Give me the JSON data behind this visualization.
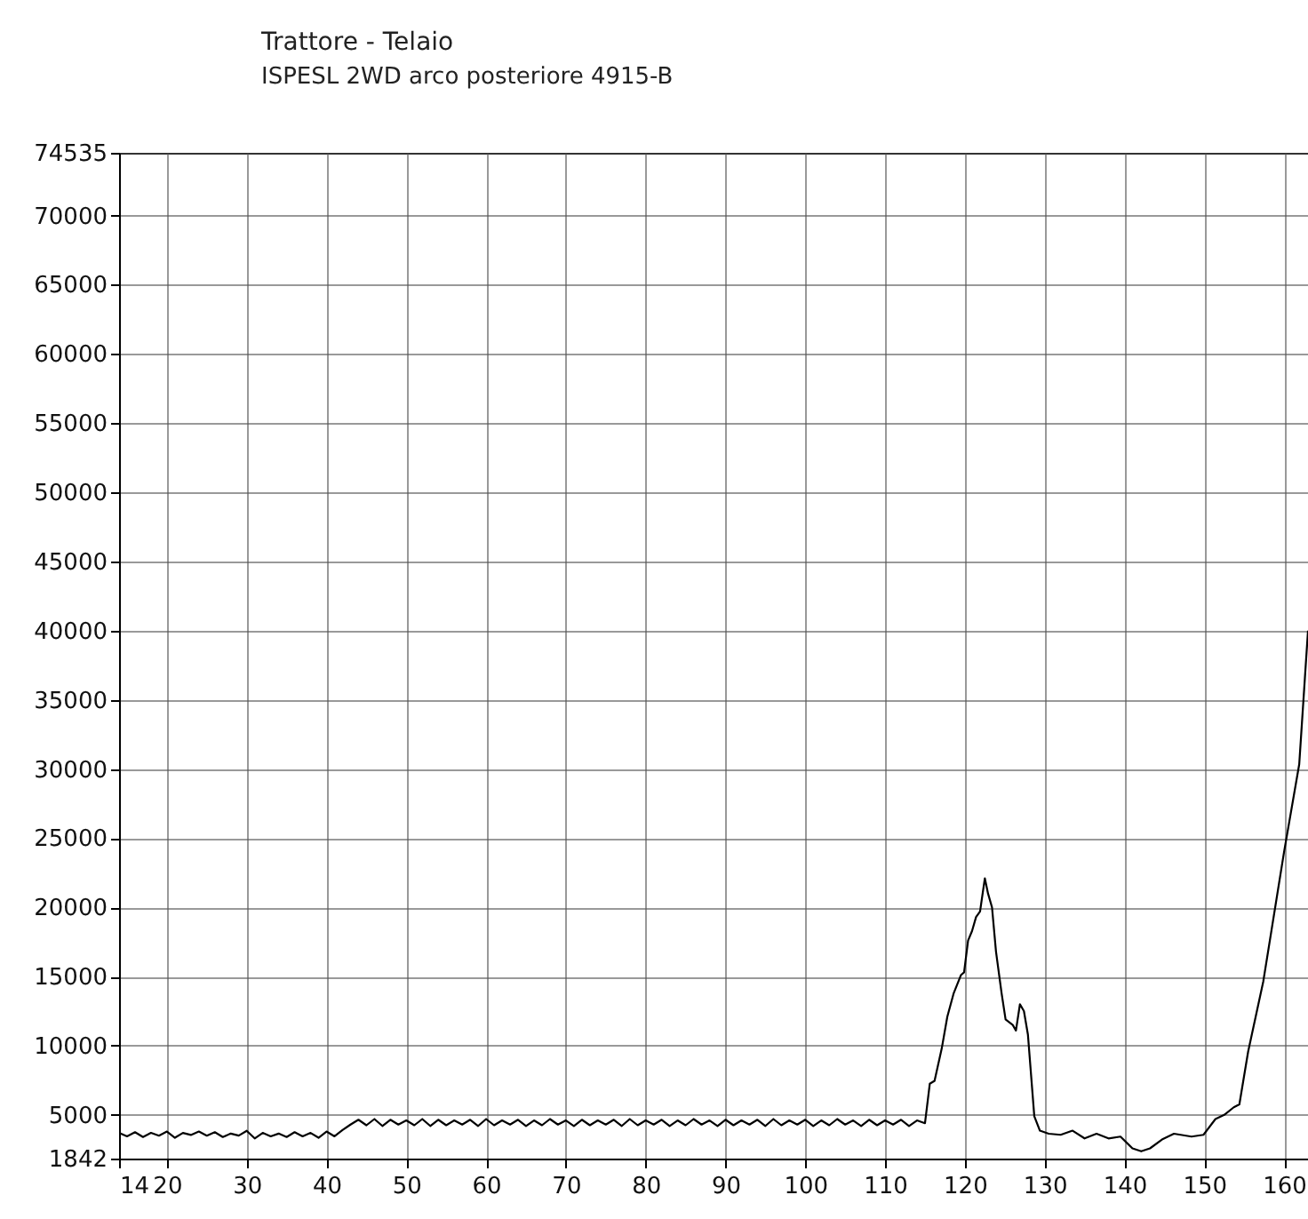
{
  "chart_data": {
    "type": "line",
    "title": "Trattore - Telaio",
    "subtitle": "ISPESL 2WD arco posteriore 4915-B",
    "x": [
      14,
      15,
      16,
      17,
      18,
      19,
      20,
      21,
      22,
      23,
      24,
      25,
      26,
      27,
      28,
      29,
      30,
      31,
      32,
      33,
      34,
      35,
      36,
      37,
      38,
      39,
      40,
      41,
      42,
      43,
      44,
      45,
      46,
      47,
      48,
      49,
      50,
      51,
      52,
      53,
      54,
      55,
      56,
      57,
      58,
      59,
      60,
      61,
      62,
      63,
      64,
      65,
      66,
      67,
      68,
      69,
      70,
      71,
      72,
      73,
      74,
      75,
      76,
      77,
      78,
      79,
      80,
      81,
      82,
      83,
      84,
      85,
      86,
      87,
      88,
      89,
      90,
      91,
      92,
      93,
      94,
      95,
      96,
      97,
      98,
      99,
      100,
      101,
      102,
      103,
      104,
      105,
      106,
      107,
      108,
      109,
      110,
      111,
      112,
      113,
      114,
      115,
      115.6,
      116.2,
      117.1,
      117.8,
      118.6,
      119.5,
      119.9,
      120.4,
      120.9,
      121.4,
      121.9,
      122.5,
      122.9,
      123.4,
      123.9,
      124.6,
      125.1,
      126,
      126.4,
      126.9,
      127.4,
      127.9,
      128.7,
      129.4,
      130.5,
      132,
      133.5,
      135,
      136.5,
      138,
      139.5,
      141,
      142.1,
      143.2,
      144.7,
      146.2,
      148.4,
      149.9,
      151.4,
      152.5,
      153.7,
      154.4,
      155.5,
      157.4,
      160,
      161.9,
      163
    ],
    "values": [
      3700,
      3450,
      3750,
      3400,
      3700,
      3500,
      3800,
      3350,
      3700,
      3550,
      3800,
      3500,
      3750,
      3400,
      3650,
      3500,
      3850,
      3300,
      3700,
      3450,
      3650,
      3400,
      3750,
      3450,
      3700,
      3350,
      3800,
      3450,
      3900,
      4300,
      4650,
      4250,
      4700,
      4200,
      4650,
      4300,
      4600,
      4250,
      4700,
      4200,
      4650,
      4250,
      4600,
      4300,
      4650,
      4200,
      4700,
      4250,
      4600,
      4300,
      4650,
      4200,
      4600,
      4250,
      4700,
      4300,
      4600,
      4200,
      4650,
      4250,
      4600,
      4300,
      4650,
      4200,
      4700,
      4250,
      4600,
      4300,
      4650,
      4200,
      4600,
      4250,
      4700,
      4300,
      4600,
      4200,
      4650,
      4250,
      4600,
      4300,
      4650,
      4200,
      4700,
      4250,
      4600,
      4300,
      4650,
      4200,
      4600,
      4250,
      4700,
      4300,
      4600,
      4200,
      4650,
      4250,
      4600,
      4300,
      4650,
      4200,
      4600,
      4400,
      7250,
      7460,
      9800,
      12100,
      13800,
      15100,
      15300,
      17600,
      18300,
      19300,
      19700,
      22100,
      21000,
      20000,
      16800,
      13800,
      11900,
      11500,
      11100,
      13000,
      12500,
      10800,
      4900,
      3860,
      3640,
      3560,
      3860,
      3300,
      3640,
      3300,
      3430,
      2580,
      2370,
      2580,
      3220,
      3640,
      3430,
      3560,
      4700,
      5000,
      5550,
      5760,
      9580,
      14660,
      24000,
      30340,
      40000
    ],
    "color": "#000000",
    "xlim": [
      14,
      163
    ],
    "xticks": [
      14,
      20,
      30,
      40,
      50,
      60,
      70,
      80,
      90,
      100,
      110,
      120,
      130,
      140,
      150,
      160
    ],
    "ylim": [
      1842,
      74535
    ],
    "yticks": [
      1842,
      5000,
      10000,
      15000,
      20000,
      25000,
      30000,
      35000,
      40000,
      45000,
      50000,
      55000,
      60000,
      65000,
      70000,
      74535
    ],
    "grid": true
  }
}
